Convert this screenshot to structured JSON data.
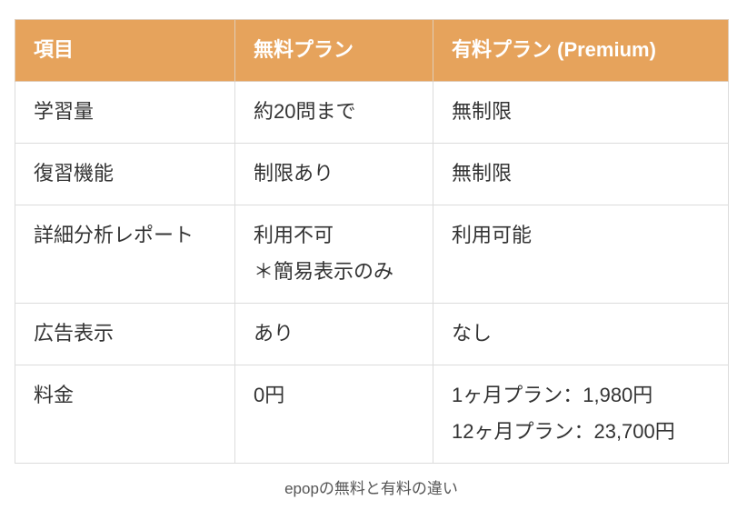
{
  "table": {
    "headers": [
      "項目",
      "無料プラン",
      "有料プラン (Premium)"
    ],
    "rows": [
      {
        "item": "学習量",
        "free": [
          "約20問まで"
        ],
        "premium": [
          "無制限"
        ]
      },
      {
        "item": "復習機能",
        "free": [
          "制限あり"
        ],
        "premium": [
          "無制限"
        ]
      },
      {
        "item": "詳細分析レポート",
        "free": [
          "利用不可",
          "＊簡易表示のみ"
        ],
        "premium": [
          "利用可能"
        ]
      },
      {
        "item": "広告表示",
        "free": [
          "あり"
        ],
        "premium": [
          "なし"
        ]
      },
      {
        "item": "料金",
        "free": [
          "0円"
        ],
        "premium": [
          "1ヶ月プラン：1,980円",
          "12ヶ月プラン：23,700円"
        ]
      }
    ]
  },
  "caption": "epopの無料と有料の違い",
  "colors": {
    "header_bg": "#e6a35c",
    "header_text": "#ffffff",
    "border": "#dcdcdc"
  }
}
